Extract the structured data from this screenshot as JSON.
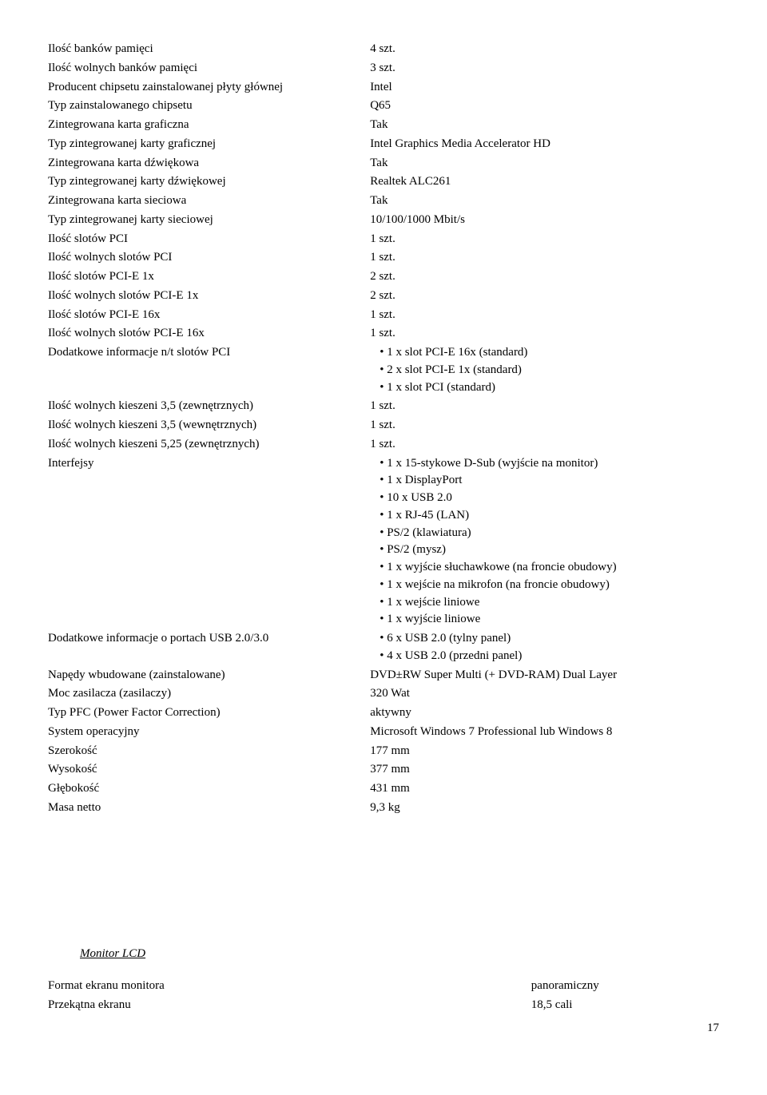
{
  "specs": [
    {
      "label": "Ilość banków pamięci",
      "value": "4 szt."
    },
    {
      "label": "Ilość wolnych banków pamięci",
      "value": "3 szt."
    },
    {
      "label": "Producent chipsetu zainstalowanej płyty głównej",
      "value": "Intel"
    },
    {
      "label": "Typ zainstalowanego chipsetu",
      "value": "Q65"
    },
    {
      "label": "Zintegrowana karta graficzna",
      "value": "Tak"
    },
    {
      "label": "Typ zintegrowanej karty graficznej",
      "value": "Intel Graphics Media Accelerator HD"
    },
    {
      "label": "Zintegrowana karta dźwiękowa",
      "value": "Tak"
    },
    {
      "label": "Typ zintegrowanej karty dźwiękowej",
      "value": "Realtek ALC261"
    },
    {
      "label": "Zintegrowana karta sieciowa",
      "value": "Tak"
    },
    {
      "label": "Typ zintegrowanej karty sieciowej",
      "value": "10/100/1000 Mbit/s"
    },
    {
      "label": "Ilość slotów PCI",
      "value": "1 szt."
    },
    {
      "label": "Ilość wolnych slotów PCI",
      "value": "1 szt."
    },
    {
      "label": "Ilość slotów PCI-E 1x",
      "value": "2 szt."
    },
    {
      "label": "Ilość wolnych slotów PCI-E 1x",
      "value": "2 szt."
    },
    {
      "label": "Ilość slotów PCI-E 16x",
      "value": "1 szt."
    },
    {
      "label": "Ilość wolnych slotów PCI-E 16x",
      "value": "1 szt."
    },
    {
      "label": "Dodatkowe informacje n/t slotów PCI",
      "bullets": [
        "1 x slot PCI-E 16x (standard)",
        "2 x slot PCI-E 1x (standard)",
        "1 x slot PCI (standard)"
      ]
    },
    {
      "label": "Ilość wolnych kieszeni 3,5 (zewnętrznych)",
      "value": "1 szt."
    },
    {
      "label": "Ilość wolnych kieszeni 3,5 (wewnętrznych)",
      "value": "1 szt."
    },
    {
      "label": "Ilość wolnych kieszeni 5,25 (zewnętrznych)",
      "value": "1 szt."
    },
    {
      "label": "Interfejsy",
      "bullets": [
        "1 x 15-stykowe D-Sub (wyjście na monitor)",
        "1 x DisplayPort",
        "10 x USB 2.0",
        "1 x RJ-45 (LAN)",
        "PS/2 (klawiatura)",
        "PS/2 (mysz)",
        "1 x wyjście słuchawkowe (na froncie obudowy)",
        "1 x wejście na mikrofon (na froncie obudowy)",
        "1 x wejście liniowe",
        "1 x wyjście liniowe"
      ]
    },
    {
      "label": "Dodatkowe informacje o portach USB 2.0/3.0",
      "bullets": [
        "6 x USB 2.0 (tylny panel)",
        "4 x USB 2.0 (przedni panel)"
      ]
    },
    {
      "label": "Napędy wbudowane (zainstalowane)",
      "value": "DVD±RW Super Multi (+ DVD-RAM) Dual Layer"
    },
    {
      "label": "Moc zasilacza (zasilaczy)",
      "value": "320 Wat"
    },
    {
      "label": "Typ PFC (Power Factor Correction)",
      "value": "aktywny"
    },
    {
      "label": "System operacyjny",
      "value": "Microsoft Windows 7 Professional  lub Windows 8"
    },
    {
      "label": "Szerokość",
      "value": "177 mm"
    },
    {
      "label": "Wysokość",
      "value": "377 mm"
    },
    {
      "label": "Głębokość",
      "value": "431 mm"
    },
    {
      "label": "Masa netto",
      "value": "9,3 kg"
    }
  ],
  "monitor": {
    "title": "Monitor LCD",
    "rows": [
      {
        "label": "Format ekranu monitora",
        "value": "panoramiczny"
      },
      {
        "label": "Przekątna ekranu",
        "value": "18,5 cali"
      }
    ]
  },
  "page_number": "17"
}
